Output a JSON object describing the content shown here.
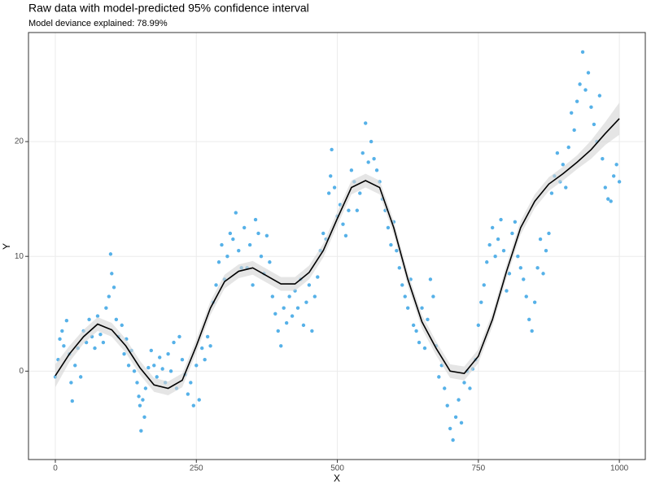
{
  "chart_data": {
    "type": "scatter",
    "title": "Raw data with model-predicted 95% confidence interval",
    "subtitle": "Model deviance explained: 78.99%",
    "x_label": "X",
    "y_label": "Y",
    "xlim": [
      -47.6,
      1046
    ],
    "ylim": [
      -7.7,
      29.5
    ],
    "xticks": [
      0,
      250,
      500,
      750,
      1000
    ],
    "yticks": [
      0,
      10,
      20
    ],
    "grid": true,
    "color": "#56b1e8",
    "x": [
      0,
      5,
      8,
      12,
      15,
      20,
      25,
      28,
      30,
      35,
      40,
      45,
      50,
      55,
      60,
      65,
      70,
      75,
      80,
      85,
      90,
      95,
      98,
      100,
      104,
      108,
      112,
      118,
      122,
      126,
      130,
      135,
      140,
      145,
      148,
      150,
      152,
      155,
      158,
      160,
      165,
      170,
      175,
      180,
      185,
      190,
      195,
      200,
      205,
      210,
      215,
      220,
      225,
      230,
      235,
      240,
      245,
      250,
      255,
      260,
      265,
      270,
      275,
      280,
      285,
      290,
      295,
      300,
      305,
      310,
      315,
      320,
      325,
      330,
      335,
      340,
      345,
      350,
      355,
      360,
      365,
      370,
      375,
      380,
      385,
      390,
      395,
      400,
      405,
      410,
      415,
      420,
      425,
      430,
      435,
      440,
      445,
      450,
      455,
      460,
      465,
      470,
      475,
      480,
      485,
      488,
      490,
      495,
      500,
      505,
      510,
      515,
      520,
      525,
      530,
      535,
      540,
      545,
      550,
      555,
      560,
      565,
      570,
      575,
      580,
      585,
      590,
      595,
      600,
      605,
      610,
      615,
      620,
      625,
      630,
      635,
      640,
      645,
      650,
      655,
      660,
      665,
      670,
      675,
      680,
      685,
      690,
      695,
      700,
      705,
      710,
      715,
      720,
      725,
      730,
      735,
      740,
      745,
      750,
      755,
      760,
      765,
      770,
      775,
      780,
      785,
      790,
      795,
      800,
      805,
      810,
      815,
      820,
      825,
      830,
      835,
      840,
      845,
      850,
      855,
      860,
      865,
      870,
      875,
      880,
      885,
      890,
      895,
      900,
      905,
      910,
      915,
      920,
      925,
      930,
      935,
      940,
      945,
      950,
      955,
      960,
      965,
      970,
      975,
      980,
      985,
      990,
      995,
      1000
    ],
    "y": [
      -0.5,
      1.0,
      2.8,
      3.5,
      2.2,
      4.4,
      1.5,
      -1.0,
      -2.6,
      0.5,
      2.0,
      -0.5,
      3.5,
      2.5,
      4.5,
      3.0,
      2.0,
      4.8,
      3.2,
      2.5,
      5.5,
      6.5,
      10.2,
      8.5,
      7.3,
      4.5,
      3.0,
      4.0,
      1.5,
      2.8,
      0.5,
      1.8,
      0.0,
      -1.0,
      -2.2,
      -3.0,
      -5.2,
      -2.5,
      -4.0,
      -1.5,
      0.3,
      1.8,
      0.5,
      -0.5,
      1.2,
      0.2,
      -1.0,
      1.5,
      0.0,
      2.5,
      -1.5,
      3.0,
      1.0,
      -0.3,
      -2.0,
      -1.0,
      -3.0,
      0.5,
      -2.5,
      2.0,
      1.0,
      3.0,
      2.2,
      6.0,
      7.5,
      9.5,
      11.0,
      8.0,
      10.0,
      12.0,
      11.5,
      13.8,
      10.5,
      9.0,
      12.5,
      9.0,
      11.0,
      7.5,
      13.2,
      12.0,
      10.0,
      8.5,
      11.8,
      9.5,
      6.5,
      5.0,
      3.5,
      2.2,
      5.5,
      4.2,
      6.5,
      4.8,
      7.0,
      5.5,
      8.0,
      4.0,
      6.0,
      7.5,
      3.5,
      6.5,
      8.2,
      10.5,
      12.0,
      11.5,
      15.5,
      17.0,
      19.3,
      16.0,
      13.5,
      14.5,
      12.8,
      11.8,
      14.0,
      17.5,
      16.5,
      14.0,
      15.5,
      19.0,
      21.6,
      18.2,
      20.0,
      18.5,
      17.5,
      16.5,
      15.0,
      14.0,
      12.5,
      11.0,
      13.0,
      10.5,
      9.0,
      7.5,
      6.5,
      5.5,
      8.0,
      4.0,
      3.5,
      2.5,
      5.5,
      2.0,
      4.5,
      8.0,
      6.5,
      2.2,
      -0.5,
      0.5,
      -1.5,
      -3.0,
      -5.0,
      -6.0,
      -4.0,
      -2.5,
      -4.5,
      -1.0,
      0.0,
      -1.5,
      0.2,
      1.0,
      4.0,
      6.0,
      7.5,
      9.5,
      11.0,
      12.5,
      10.0,
      11.5,
      13.2,
      10.5,
      7.0,
      8.5,
      12.0,
      13.0,
      10.0,
      9.0,
      8.0,
      6.5,
      4.5,
      3.5,
      6.0,
      9.0,
      11.5,
      8.5,
      10.5,
      12.0,
      15.5,
      17.0,
      19.0,
      16.5,
      18.0,
      16.0,
      19.5,
      22.5,
      21.0,
      23.5,
      25.0,
      27.8,
      24.5,
      26.0,
      23.0,
      21.5,
      20.0,
      24.0,
      18.5,
      16.0,
      15.0,
      14.8,
      17.0,
      18.0,
      16.5
    ],
    "fit": {
      "color": "#000000",
      "band_color": "#d3d3d3",
      "x": [
        0,
        25,
        50,
        75,
        100,
        125,
        150,
        175,
        200,
        225,
        250,
        275,
        300,
        325,
        350,
        375,
        400,
        425,
        450,
        475,
        500,
        525,
        550,
        575,
        600,
        625,
        650,
        675,
        700,
        725,
        750,
        775,
        800,
        825,
        850,
        875,
        900,
        925,
        950,
        975,
        1000
      ],
      "values": [
        -0.4,
        1.5,
        3.0,
        4.1,
        3.6,
        2.2,
        0.3,
        -1.2,
        -1.5,
        -0.8,
        2.2,
        5.5,
        7.8,
        8.7,
        9.0,
        8.3,
        7.6,
        7.6,
        8.6,
        10.5,
        13.3,
        16.0,
        16.6,
        16.0,
        12.5,
        8.0,
        4.3,
        2.0,
        0.0,
        -0.2,
        1.3,
        4.5,
        8.7,
        12.5,
        14.8,
        16.3,
        17.2,
        18.2,
        19.3,
        20.7,
        22.0
      ],
      "upper": [
        0.6,
        2.2,
        3.6,
        4.7,
        4.2,
        2.8,
        0.9,
        -0.6,
        -0.9,
        -0.2,
        2.8,
        6.1,
        8.4,
        9.3,
        9.6,
        8.9,
        8.2,
        8.2,
        9.2,
        11.1,
        13.9,
        16.6,
        17.2,
        16.6,
        13.1,
        8.6,
        4.9,
        2.6,
        0.6,
        0.4,
        1.9,
        5.1,
        9.3,
        13.1,
        15.4,
        16.9,
        17.8,
        18.8,
        20.1,
        21.7,
        23.4
      ],
      "lower": [
        -1.4,
        0.8,
        2.4,
        3.5,
        3.0,
        1.6,
        -0.3,
        -1.8,
        -2.1,
        -1.4,
        1.6,
        4.9,
        7.2,
        8.1,
        8.4,
        7.7,
        7.0,
        7.0,
        8.0,
        9.9,
        12.7,
        15.4,
        16.0,
        15.4,
        11.9,
        7.4,
        3.7,
        1.4,
        -0.6,
        -0.8,
        0.7,
        3.9,
        8.1,
        11.9,
        14.2,
        15.7,
        16.6,
        17.6,
        18.5,
        19.7,
        20.6
      ]
    }
  }
}
